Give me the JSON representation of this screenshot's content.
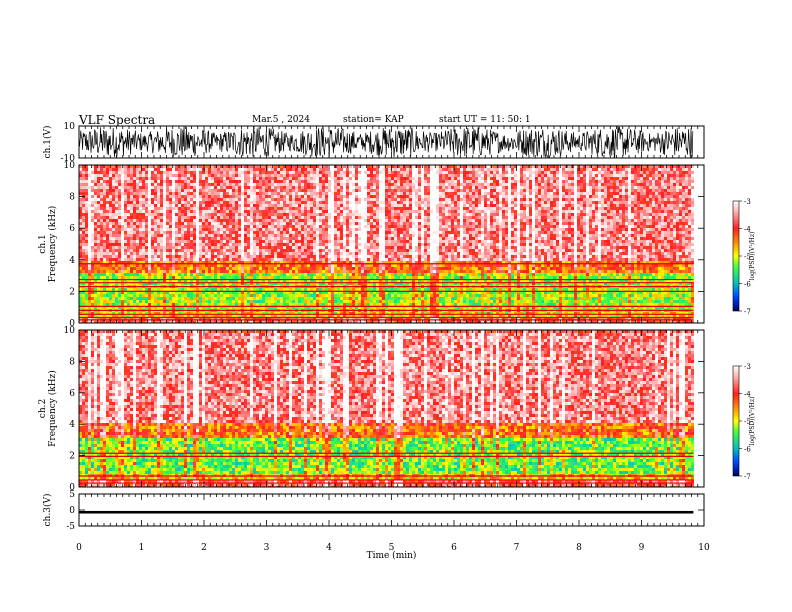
{
  "header": {
    "title": "VLF Spectra",
    "date": "Mar.5 , 2024",
    "station": "station= KAP",
    "start_ut": "start UT =  11: 50: 1"
  },
  "chart_data": [
    {
      "type": "line",
      "name": "ch1-waveform",
      "ylabel": "ch.1(V)",
      "ylim": [
        -10,
        10
      ],
      "yticks": [
        -10,
        10
      ],
      "xlim": [
        0,
        10
      ],
      "data_extent": [
        0,
        9.83
      ],
      "envelope": "dense oscillating waveform filling nearly the full range"
    },
    {
      "type": "heatmap",
      "name": "ch1-spectrogram",
      "ylabel": "ch.1\nFrequency (kHz)",
      "ylim": [
        0,
        10
      ],
      "yticks": [
        0,
        2,
        4,
        6,
        8,
        10
      ],
      "xlim": [
        0,
        10
      ],
      "data_extent": [
        0,
        9.83
      ],
      "colorbar": {
        "label": "log(PSD)(V²/Hz)",
        "range": [
          -7,
          -3
        ],
        "ticks": [
          -3,
          -4,
          -5,
          -6,
          -7
        ]
      },
      "bands": [
        {
          "from": 0.5,
          "to": 1.0,
          "level": -4.9
        },
        {
          "from": 1.0,
          "to": 3.3,
          "level": -5.2
        },
        {
          "from": 3.3,
          "to": 4.0,
          "level": -4.4
        },
        {
          "from": 4.0,
          "to": 10.0,
          "level": -3.6
        }
      ],
      "lines_khz": [
        0.2,
        0.35,
        0.55,
        0.8,
        1.05,
        2.0,
        2.3,
        2.55,
        2.75,
        3.75
      ]
    },
    {
      "type": "heatmap",
      "name": "ch2-spectrogram",
      "ylabel": "ch.2\nFrequency (kHz)",
      "ylim": [
        0,
        10
      ],
      "yticks": [
        0,
        2,
        4,
        6,
        8,
        10
      ],
      "xlim": [
        0,
        10
      ],
      "data_extent": [
        0,
        9.83
      ],
      "colorbar": {
        "label": "log(PSD)(V²/Hz)",
        "range": [
          -7,
          -3
        ],
        "ticks": [
          -3,
          -4,
          -5,
          -6,
          -7
        ]
      },
      "bands": [
        {
          "from": 0.6,
          "to": 1.0,
          "level": -4.8
        },
        {
          "from": 1.0,
          "to": 3.3,
          "level": -5.4
        },
        {
          "from": 3.3,
          "to": 4.1,
          "level": -4.4
        },
        {
          "from": 4.1,
          "to": 10.0,
          "level": -3.6
        }
      ],
      "lines_khz": [
        0.25,
        0.45,
        0.7,
        1.95,
        2.15
      ]
    },
    {
      "type": "line",
      "name": "ch3-waveform",
      "ylabel": "ch.3(V)",
      "ylim": [
        -5,
        5
      ],
      "yticks": [
        -5,
        0,
        5
      ],
      "xlim": [
        0,
        10
      ],
      "data_extent": [
        0,
        9.83
      ],
      "baseline": -0.7,
      "envelope_halfwidth": 0.4,
      "xlabel": "Time (min)",
      "xticks": [
        0,
        1,
        2,
        3,
        4,
        5,
        6,
        7,
        8,
        9,
        10
      ]
    }
  ]
}
